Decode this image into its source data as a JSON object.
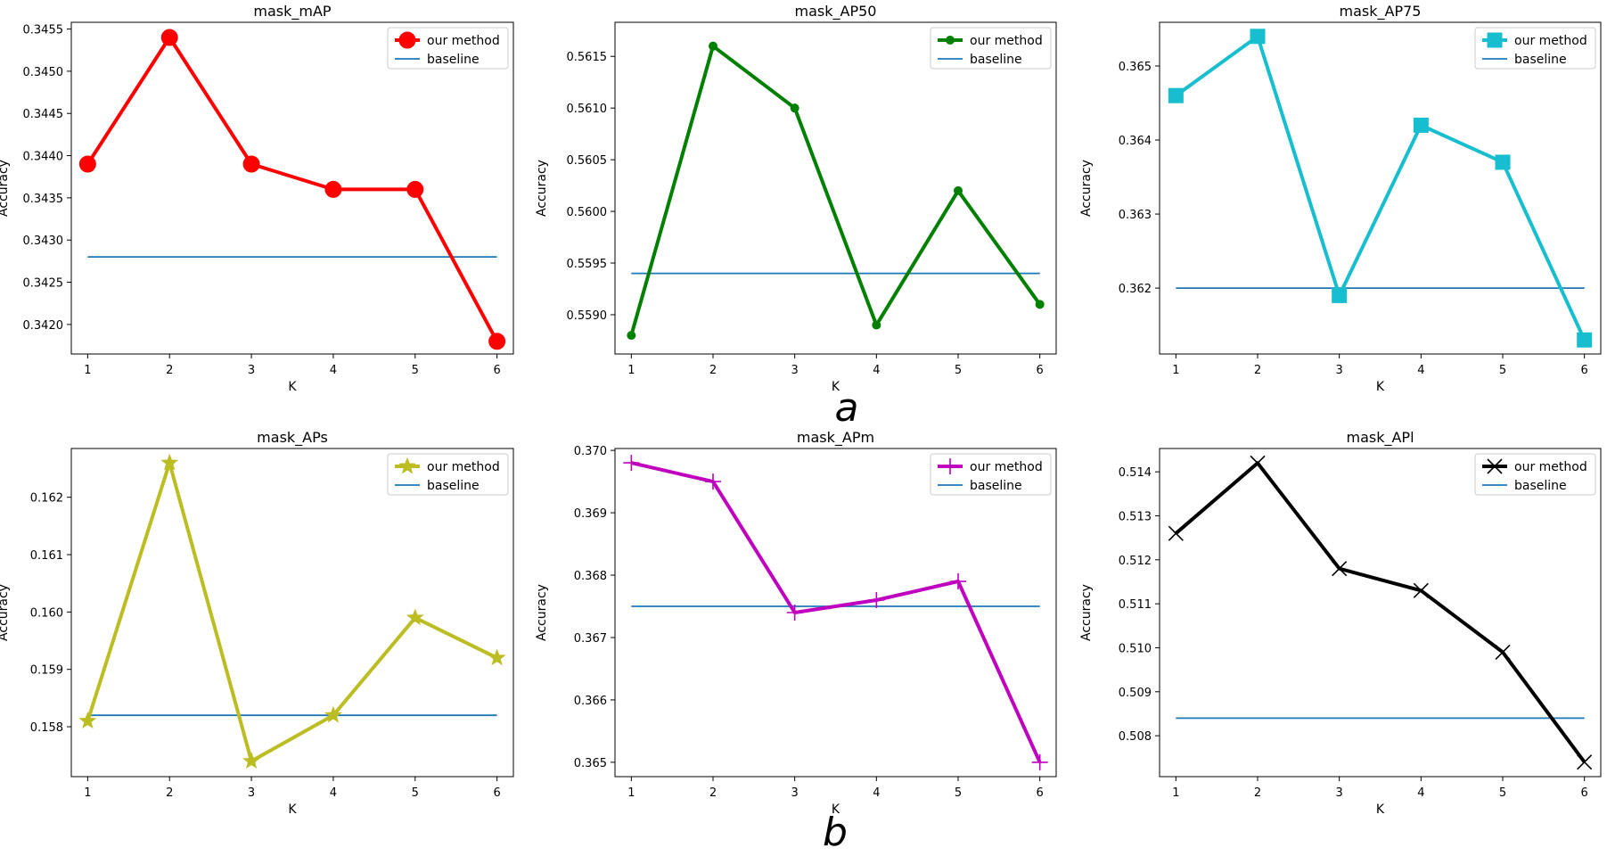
{
  "figure": {
    "row_labels": [
      "a",
      "b"
    ]
  },
  "chart_data": [
    {
      "type": "line",
      "title": "mask_mAP",
      "xlabel": "K",
      "ylabel": "Accuracy",
      "x": [
        1,
        2,
        3,
        4,
        5,
        6
      ],
      "xlim": [
        0.8,
        6.2
      ],
      "ylim": [
        0.34165,
        0.34558
      ],
      "yticks": [
        0.342,
        0.3425,
        0.343,
        0.3435,
        0.344,
        0.3445,
        0.345,
        0.3455
      ],
      "ytick_labels": [
        "0.3420",
        "0.3425",
        "0.3430",
        "0.3435",
        "0.3440",
        "0.3445",
        "0.3450",
        "0.3455"
      ],
      "legend": "top-right",
      "series": [
        {
          "name": "our method",
          "values": [
            0.3439,
            0.3454,
            0.3439,
            0.3436,
            0.3436,
            0.3418
          ],
          "color": "#ff0000",
          "marker": "circle"
        },
        {
          "name": "baseline",
          "values": [
            0.3428,
            0.3428,
            0.3428,
            0.3428,
            0.3428,
            0.3428
          ],
          "color": "#1f77b4",
          "marker": "none"
        }
      ]
    },
    {
      "type": "line",
      "title": "mask_AP50",
      "xlabel": "K",
      "ylabel": "Accuracy",
      "x": [
        1,
        2,
        3,
        4,
        5,
        6
      ],
      "xlim": [
        0.8,
        6.2
      ],
      "ylim": [
        0.55862,
        0.56183
      ],
      "yticks": [
        0.559,
        0.5595,
        0.56,
        0.5605,
        0.561,
        0.5615
      ],
      "ytick_labels": [
        "0.5590",
        "0.5595",
        "0.5600",
        "0.5605",
        "0.5610",
        "0.5615"
      ],
      "legend": "top-right",
      "series": [
        {
          "name": "our method",
          "values": [
            0.5588,
            0.5616,
            0.561,
            0.5589,
            0.5602,
            0.5591
          ],
          "color": "#008000",
          "marker": "dot"
        },
        {
          "name": "baseline",
          "values": [
            0.5594,
            0.5594,
            0.5594,
            0.5594,
            0.5594,
            0.5594
          ],
          "color": "#1f77b4",
          "marker": "none"
        }
      ]
    },
    {
      "type": "line",
      "title": "mask_AP75",
      "xlabel": "K",
      "ylabel": "Accuracy",
      "x": [
        1,
        2,
        3,
        4,
        5,
        6
      ],
      "xlim": [
        0.8,
        6.2
      ],
      "ylim": [
        0.36111,
        0.36559
      ],
      "yticks": [
        0.362,
        0.363,
        0.364,
        0.365
      ],
      "ytick_labels": [
        "0.362",
        "0.363",
        "0.364",
        "0.365"
      ],
      "legend": "top-right",
      "series": [
        {
          "name": "our method",
          "values": [
            0.3646,
            0.3654,
            0.3619,
            0.3642,
            0.3637,
            0.3613
          ],
          "color": "#17becf",
          "marker": "square"
        },
        {
          "name": "baseline",
          "values": [
            0.362,
            0.362,
            0.362,
            0.362,
            0.362,
            0.362
          ],
          "color": "#1f77b4",
          "marker": "none"
        }
      ]
    },
    {
      "type": "line",
      "title": "mask_APs",
      "xlabel": "K",
      "ylabel": "Accuracy",
      "x": [
        1,
        2,
        3,
        4,
        5,
        6
      ],
      "xlim": [
        0.8,
        6.2
      ],
      "ylim": [
        0.15713,
        0.16285
      ],
      "yticks": [
        0.158,
        0.159,
        0.16,
        0.161,
        0.162
      ],
      "ytick_labels": [
        "0.158",
        "0.159",
        "0.160",
        "0.161",
        "0.162"
      ],
      "legend": "top-right",
      "series": [
        {
          "name": "our method",
          "values": [
            0.1581,
            0.1626,
            0.1574,
            0.1582,
            0.1599,
            0.1592
          ],
          "color": "#bcbd22",
          "marker": "star"
        },
        {
          "name": "baseline",
          "values": [
            0.1582,
            0.1582,
            0.1582,
            0.1582,
            0.1582,
            0.1582
          ],
          "color": "#1f77b4",
          "marker": "none"
        }
      ]
    },
    {
      "type": "line",
      "title": "mask_APm",
      "xlabel": "K",
      "ylabel": "Accuracy",
      "x": [
        1,
        2,
        3,
        4,
        5,
        6
      ],
      "xlim": [
        0.8,
        6.2
      ],
      "ylim": [
        0.36477,
        0.37003
      ],
      "yticks": [
        0.365,
        0.366,
        0.367,
        0.368,
        0.369,
        0.37
      ],
      "ytick_labels": [
        "0.365",
        "0.366",
        "0.367",
        "0.368",
        "0.369",
        "0.370"
      ],
      "legend": "top-right",
      "series": [
        {
          "name": "our method",
          "values": [
            0.3698,
            0.3695,
            0.3674,
            0.3676,
            0.3679,
            0.365
          ],
          "color": "#bf00bf",
          "marker": "plus"
        },
        {
          "name": "baseline",
          "values": [
            0.3675,
            0.3675,
            0.3675,
            0.3675,
            0.3675,
            0.3675
          ],
          "color": "#1f77b4",
          "marker": "none"
        }
      ]
    },
    {
      "type": "line",
      "title": "mask_APl",
      "xlabel": "K",
      "ylabel": "Accuracy",
      "x": [
        1,
        2,
        3,
        4,
        5,
        6
      ],
      "xlim": [
        0.8,
        6.2
      ],
      "ylim": [
        0.50707,
        0.51453
      ],
      "yticks": [
        0.508,
        0.509,
        0.51,
        0.511,
        0.512,
        0.513,
        0.514
      ],
      "ytick_labels": [
        "0.508",
        "0.509",
        "0.510",
        "0.511",
        "0.512",
        "0.513",
        "0.514"
      ],
      "legend": "top-right",
      "series": [
        {
          "name": "our method",
          "values": [
            0.5126,
            0.5142,
            0.5118,
            0.5113,
            0.5099,
            0.5074
          ],
          "color": "#000000",
          "marker": "x"
        },
        {
          "name": "baseline",
          "values": [
            0.5084,
            0.5084,
            0.5084,
            0.5084,
            0.5084,
            0.5084
          ],
          "color": "#1f77b4",
          "marker": "none"
        }
      ]
    }
  ]
}
